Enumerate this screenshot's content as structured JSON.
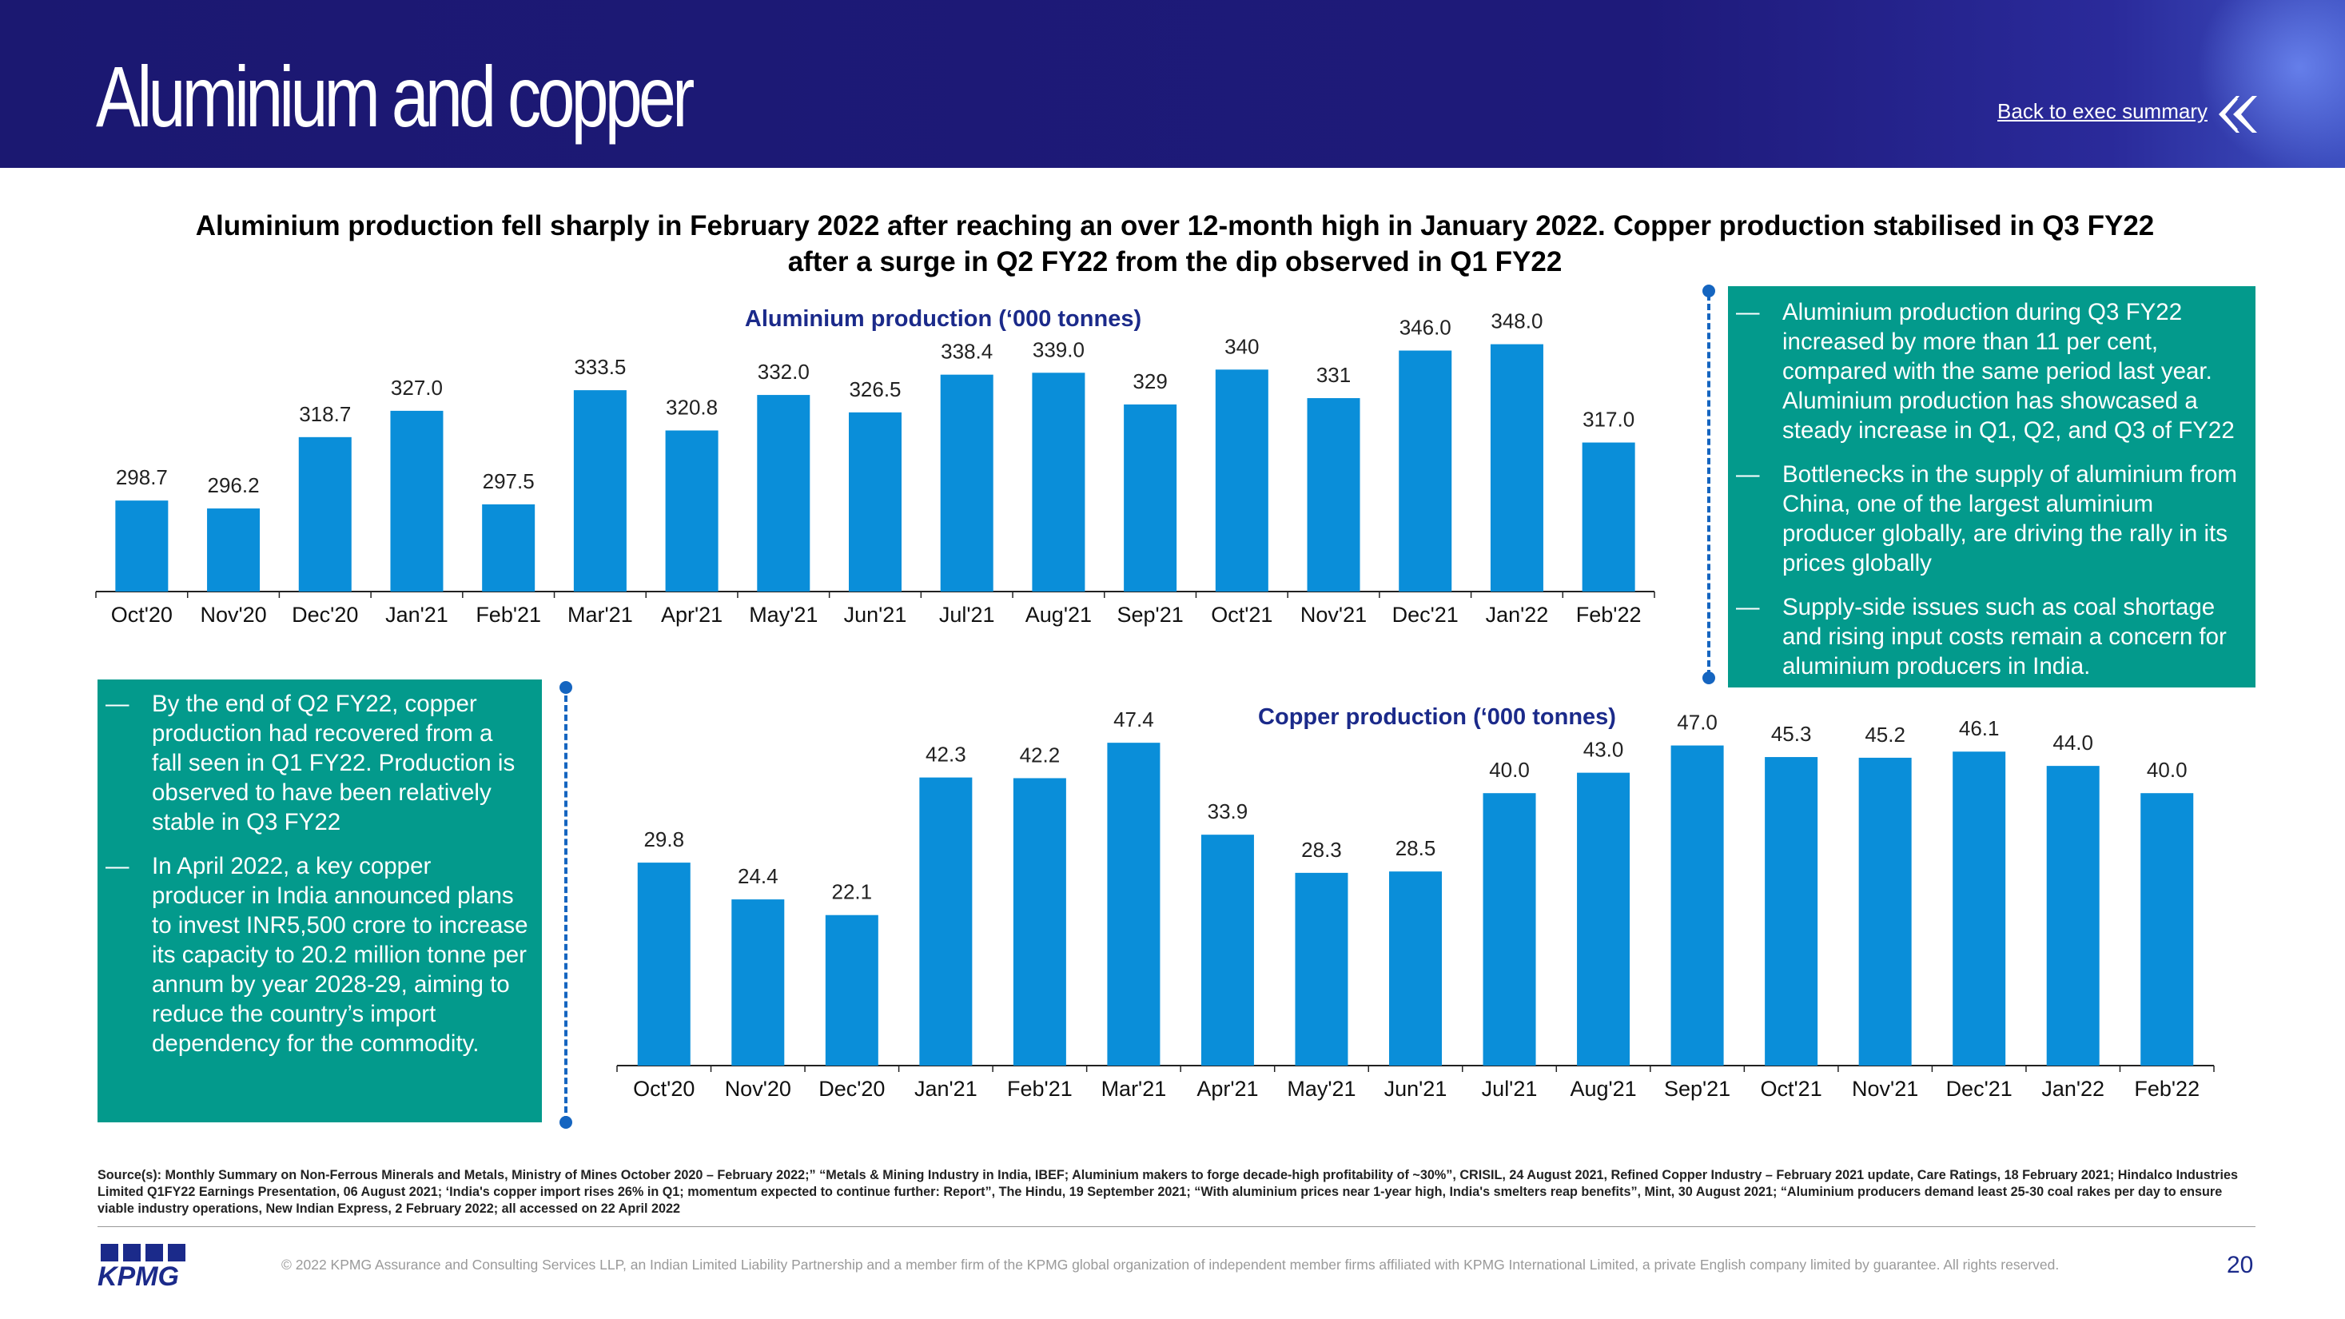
{
  "header": {
    "title": "Aluminium and copper",
    "back_link": "Back to exec summary",
    "back_icon": "double-chevron-left-icon"
  },
  "subtitle_line1": "Aluminium production fell sharply in February 2022 after reaching an over 12-month high in January 2022. Copper production stabilised in Q3 FY22",
  "subtitle_line2": "after a surge in Q2 FY22 from the dip observed in Q1 FY22",
  "colors": {
    "bar": "#0a8ed9",
    "teal": "#039a8c",
    "header": "#1b1871",
    "accent": "#1565c0"
  },
  "chart_data": [
    {
      "type": "bar",
      "title": "Aluminium production (‘000 tonnes)",
      "categories": [
        "Oct'20",
        "Nov'20",
        "Dec'20",
        "Jan'21",
        "Feb'21",
        "Mar'21",
        "Apr'21",
        "May'21",
        "Jun'21",
        "Jul'21",
        "Aug'21",
        "Sep'21",
        "Oct'21",
        "Nov'21",
        "Dec'21",
        "Jan'22",
        "Feb'22"
      ],
      "values": [
        298.7,
        296.2,
        318.7,
        327.0,
        297.5,
        333.5,
        320.8,
        332.0,
        326.5,
        338.4,
        339.0,
        329,
        340,
        331,
        346.0,
        348.0,
        317.0
      ],
      "labels": [
        "298.7",
        "296.2",
        "318.7",
        "327.0",
        "297.5",
        "333.5",
        "320.8",
        "332.0",
        "326.5",
        "338.4",
        "339.0",
        "329",
        "340",
        "331",
        "346.0",
        "348.0",
        "317.0"
      ],
      "ylim": [
        270,
        360
      ],
      "grid": false,
      "legend": "none"
    },
    {
      "type": "bar",
      "title": "Copper production (‘000 tonnes)",
      "categories": [
        "Oct'20",
        "Nov'20",
        "Dec'20",
        "Jan'21",
        "Feb'21",
        "Mar'21",
        "Apr'21",
        "May'21",
        "Jun'21",
        "Jul'21",
        "Aug'21",
        "Sep'21",
        "Oct'21",
        "Nov'21",
        "Dec'21",
        "Jan'22",
        "Feb'22"
      ],
      "values": [
        29.8,
        24.4,
        22.1,
        42.3,
        42.2,
        47.4,
        33.9,
        28.3,
        28.5,
        40.0,
        43.0,
        47.0,
        45.3,
        45.2,
        46.1,
        44.0,
        40.0
      ],
      "labels": [
        "29.8",
        "24.4",
        "22.1",
        "42.3",
        "42.2",
        "47.4",
        "33.9",
        "28.3",
        "28.5",
        "40.0",
        "43.0",
        "47.0",
        "45.3",
        "45.2",
        "46.1",
        "44.0",
        "40.0"
      ],
      "ylim": [
        0,
        50
      ],
      "grid": false,
      "legend": "none"
    }
  ],
  "right_box": {
    "bullets": [
      "Aluminium production during Q3 FY22 increased by more than 11 per cent, compared with the same period last year. Aluminium production has showcased a steady increase in Q1, Q2, and Q3 of FY22",
      "Bottlenecks in the supply of aluminium from China, one of the largest aluminium producer globally, are driving the rally in its prices globally",
      "Supply-side issues such as coal shortage and rising input costs remain a concern for aluminium producers in India."
    ]
  },
  "left_box": {
    "bullets": [
      "By the end of Q2 FY22, copper production had recovered from a fall seen in Q1 FY22. Production is observed to have been relatively stable in Q3 FY22",
      "In April 2022, a key copper producer in India announced plans to invest INR5,500 crore to increase its capacity to 20.2 million tonne per annum by year 2028-29, aiming to reduce the country’s import dependency for the commodity."
    ]
  },
  "bullet_dash": "—",
  "source_text": "Source(s): Monthly Summary on Non-Ferrous Minerals and Metals, Ministry of Mines October 2020 – February 2022;” “Metals & Mining Industry in India, IBEF; Aluminium makers to forge decade-high profitability of ~30%”, CRISIL, 24 August 2021, Refined Copper Industry – February 2021 update, Care Ratings, 18 February 2021; Hindalco Industries Limited Q1FY22 Earnings Presentation, 06 August 2021; ‘India's copper import rises 26% in Q1; momentum expected to continue further: Report”, The Hindu, 19 September 2021; “With aluminium prices near 1-year high, India's smelters reap benefits”, Mint, 30 August 2021; “Aluminium producers demand least 25-30 coal rakes per day to ensure viable industry operations, New Indian Express, 2 February 2022; all accessed on 22 April 2022",
  "footer": {
    "logo": "KPMG",
    "copyright": "© 2022 KPMG Assurance and Consulting Services LLP, an Indian Limited Liability Partnership and a member firm of the KPMG global organization of independent member firms affiliated with KPMG International Limited, a private English company limited by guarantee. All rights reserved.",
    "page_number": "20"
  }
}
